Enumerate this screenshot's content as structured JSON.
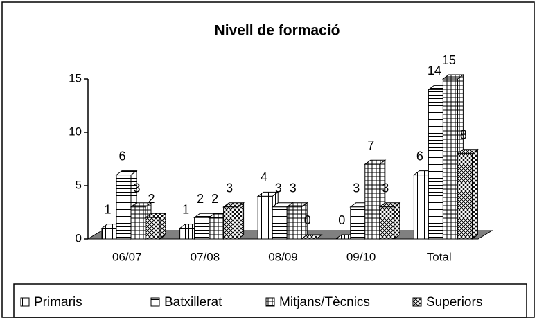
{
  "chart_data": {
    "type": "bar3d",
    "title": "Nivell de formació",
    "categories": [
      "06/07",
      "07/08",
      "08/09",
      "09/10",
      "Total"
    ],
    "series": [
      {
        "name": "Primaris",
        "color": "#ffffff",
        "pattern": "vertical",
        "values": [
          1,
          1,
          4,
          0,
          6
        ]
      },
      {
        "name": "Batxillerat",
        "color": "#ffffff",
        "pattern": "horizontal",
        "values": [
          6,
          2,
          3,
          3,
          14
        ]
      },
      {
        "name": "Mitjans/Tècnics",
        "color": "#ffffff",
        "pattern": "grid",
        "values": [
          3,
          2,
          3,
          7,
          15
        ]
      },
      {
        "name": "Superiors",
        "color": "#ffffff",
        "pattern": "cross",
        "values": [
          2,
          3,
          0,
          3,
          8
        ]
      }
    ],
    "ylim": [
      0,
      15
    ],
    "yticks": [
      0,
      5,
      10,
      15
    ],
    "legend": "bottom"
  }
}
